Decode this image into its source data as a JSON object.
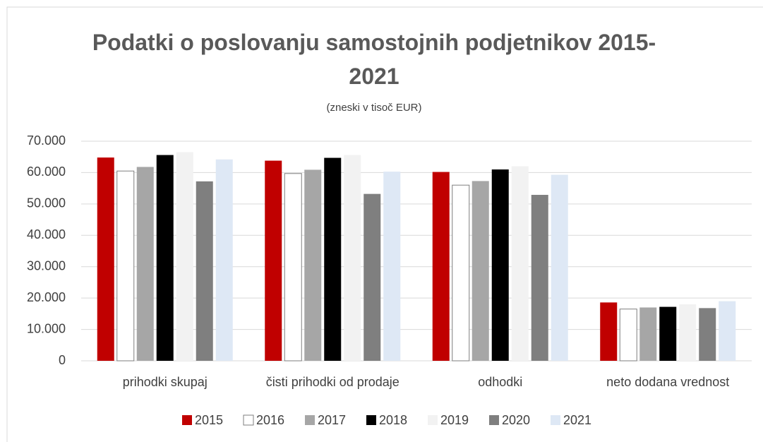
{
  "chart_data": {
    "type": "bar",
    "title": "Podatki o poslovanju samostojnih podjetnikov 2015-2021",
    "subtitle": "(zneski v tisoč EUR)",
    "categories": [
      "prihodki skupaj",
      "čisti prihodki od prodaje",
      "odhodki",
      "neto dodana vrednost"
    ],
    "series": [
      {
        "name": "2015",
        "color": "#c00000",
        "values": [
          64800,
          63800,
          60200,
          18600
        ]
      },
      {
        "name": "2016",
        "color": "#ffffff",
        "values": [
          60500,
          59700,
          56000,
          16500
        ]
      },
      {
        "name": "2017",
        "color": "#a6a6a6",
        "values": [
          61800,
          60900,
          57300,
          17000
        ]
      },
      {
        "name": "2018",
        "color": "#000000",
        "values": [
          65600,
          64700,
          61000,
          17200
        ]
      },
      {
        "name": "2019",
        "color": "#f2f2f2",
        "values": [
          66500,
          65600,
          62000,
          18000
        ]
      },
      {
        "name": "2020",
        "color": "#7f7f7f",
        "values": [
          57200,
          53200,
          52900,
          16800
        ]
      },
      {
        "name": "2021",
        "color": "#dee8f5",
        "values": [
          64200,
          60300,
          59300,
          19000
        ]
      }
    ],
    "ylim": [
      0,
      70000
    ],
    "yticks": [
      0,
      {
        "value": 10000,
        "label": "10.000"
      },
      {
        "value": 20000,
        "label": "20.000"
      },
      {
        "value": 30000,
        "label": "30.000"
      },
      {
        "value": 40000,
        "label": "40.000"
      },
      {
        "value": 50000,
        "label": "50.000"
      },
      {
        "value": 60000,
        "label": "60.000"
      },
      {
        "value": 70000,
        "label": "70.000"
      }
    ],
    "grid": true,
    "legend": "bottom"
  }
}
